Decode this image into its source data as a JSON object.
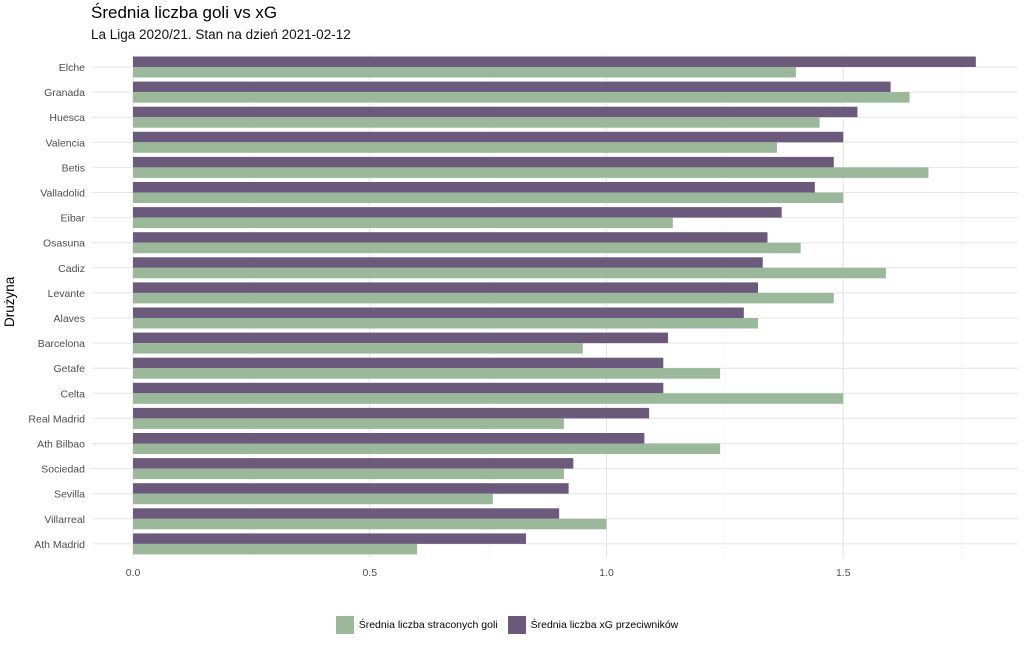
{
  "chart_data": {
    "type": "bar",
    "orientation": "horizontal",
    "title": "Średnia liczba goli vs xG",
    "subtitle": "La Liga 2020/21. Stan na dzień 2021-02-12",
    "xlabel": "",
    "ylabel": "Drużyna",
    "xlim": [
      0,
      1.8
    ],
    "xticks": [
      "0.0",
      "0.5",
      "1.0",
      "1.5"
    ],
    "xtick_values": [
      0,
      0.5,
      1.0,
      1.5
    ],
    "legend_position": "bottom",
    "categories": [
      "Elche",
      "Granada",
      "Huesca",
      "Valencia",
      "Betis",
      "Valladolid",
      "Eibar",
      "Osasuna",
      "Cadiz",
      "Levante",
      "Alaves",
      "Barcelona",
      "Getafe",
      "Celta",
      "Real Madrid",
      "Ath Bilbao",
      "Sociedad",
      "Sevilla",
      "Villarreal",
      "Ath Madrid"
    ],
    "series": [
      {
        "name": "Średnia liczba xG przeciwników",
        "color": "#6b5a7b",
        "values": [
          1.78,
          1.6,
          1.53,
          1.5,
          1.48,
          1.44,
          1.37,
          1.34,
          1.33,
          1.32,
          1.29,
          1.13,
          1.12,
          1.12,
          1.09,
          1.08,
          0.93,
          0.92,
          0.9,
          0.83
        ]
      },
      {
        "name": "Średnia liczba straconych goli",
        "color": "#9bb89a",
        "values": [
          1.4,
          1.64,
          1.45,
          1.36,
          1.68,
          1.5,
          1.14,
          1.41,
          1.59,
          1.48,
          1.32,
          0.95,
          1.24,
          1.5,
          0.91,
          1.24,
          0.91,
          0.76,
          1.0,
          0.6
        ]
      }
    ]
  }
}
